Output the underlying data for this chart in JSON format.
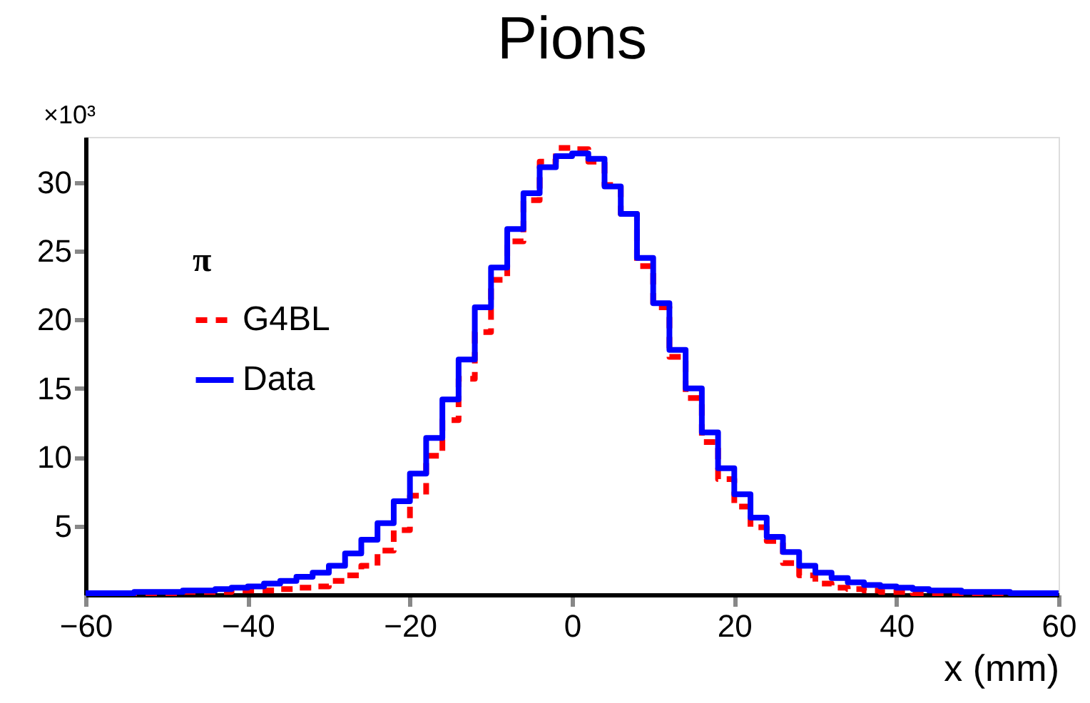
{
  "chart_data": {
    "type": "histogram",
    "title": "Pions",
    "xlabel": "x (mm)",
    "ylabel": "×10³",
    "legend_title": "π",
    "legend": "top left",
    "grid": false,
    "bins": [
      -60,
      -58,
      -56,
      -54,
      -52,
      -50,
      -48,
      -46,
      -44,
      -42,
      -40,
      -38,
      -36,
      -34,
      -32,
      -30,
      -28,
      -26,
      -24,
      -22,
      -20,
      -18,
      -16,
      -14,
      -12,
      -10,
      -8,
      -6,
      -4,
      -2,
      0,
      2,
      4,
      6,
      8,
      10,
      12,
      14,
      16,
      18,
      20,
      22,
      24,
      26,
      28,
      30,
      32,
      34,
      36,
      38,
      40,
      42,
      44,
      46,
      48,
      50,
      52,
      54,
      56,
      58,
      60
    ],
    "series": [
      {
        "name": "G4BL",
        "color": "#ff0000",
        "line_style": "dashed",
        "values": [
          0.1,
          0.1,
          0.1,
          0.1,
          0.1,
          0.1,
          0.2,
          0.2,
          0.2,
          0.3,
          0.3,
          0.3,
          0.4,
          0.5,
          0.6,
          1.0,
          1.4,
          2.1,
          3.2,
          4.7,
          7.2,
          10.1,
          12.7,
          15.7,
          19.1,
          22.9,
          25.7,
          28.7,
          31.5,
          32.5,
          32.4,
          31.5,
          29.8,
          27.7,
          23.9,
          20.9,
          17.3,
          14.3,
          11.1,
          8.4,
          6.4,
          4.9,
          3.9,
          2.3,
          1.4,
          0.8,
          0.5,
          0.4,
          0.3,
          0.2,
          0.2,
          0.1,
          0.1,
          0.1,
          0.1,
          0.1,
          0.1,
          0.1,
          0.1,
          0.1
        ]
      },
      {
        "name": "Data",
        "color": "#0000ff",
        "line_style": "solid",
        "values": [
          0.1,
          0.1,
          0.1,
          0.2,
          0.2,
          0.2,
          0.3,
          0.3,
          0.4,
          0.5,
          0.6,
          0.8,
          1.0,
          1.3,
          1.6,
          2.1,
          3.0,
          4.0,
          5.2,
          6.8,
          8.8,
          11.4,
          14.2,
          17.1,
          20.9,
          23.8,
          26.6,
          29.2,
          31.1,
          31.9,
          32.1,
          31.7,
          29.7,
          27.7,
          24.5,
          21.2,
          17.8,
          15.0,
          11.8,
          9.2,
          7.3,
          5.6,
          4.2,
          3.1,
          2.1,
          1.6,
          1.2,
          0.9,
          0.7,
          0.6,
          0.5,
          0.4,
          0.3,
          0.3,
          0.2,
          0.2,
          0.2,
          0.1,
          0.1,
          0.1
        ]
      }
    ],
    "xlim": [
      -60,
      60
    ],
    "xticks": [
      -60,
      -40,
      -20,
      0,
      20,
      40,
      60
    ],
    "ylim": [
      0,
      33.3
    ],
    "yticks": [
      5,
      10,
      15,
      20,
      25,
      30
    ]
  }
}
